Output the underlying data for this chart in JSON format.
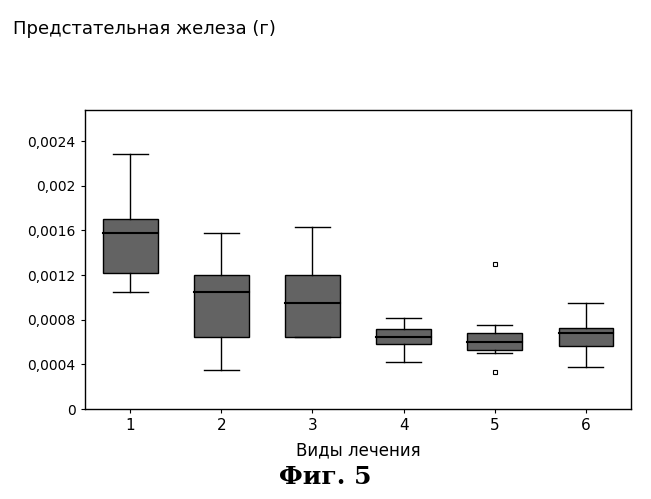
{
  "title": "Предстательная железа (г)",
  "xlabel": "Виды лечения",
  "fig_label": "Фиг. 5",
  "ylim": [
    0,
    0.00268
  ],
  "yticks": [
    0,
    0.0004,
    0.0008,
    0.0012,
    0.0016,
    0.002,
    0.0024
  ],
  "ytick_labels": [
    "0",
    "0,0004",
    "0,0008",
    "0,0012",
    "0,0016",
    "0,002",
    "0,0024"
  ],
  "xticks": [
    1,
    2,
    3,
    4,
    5,
    6
  ],
  "boxes": [
    {
      "group": 1,
      "whisker_low": 0.00105,
      "q1": 0.00122,
      "median": 0.00158,
      "q3": 0.0017,
      "whisker_high": 0.00228,
      "outliers": []
    },
    {
      "group": 2,
      "whisker_low": 0.00035,
      "q1": 0.00065,
      "median": 0.00105,
      "q3": 0.0012,
      "whisker_high": 0.00158,
      "outliers": []
    },
    {
      "group": 3,
      "whisker_low": 0.00065,
      "q1": 0.00065,
      "median": 0.00095,
      "q3": 0.0012,
      "whisker_high": 0.00163,
      "outliers": []
    },
    {
      "group": 4,
      "whisker_low": 0.00042,
      "q1": 0.00058,
      "median": 0.00065,
      "q3": 0.00072,
      "whisker_high": 0.00082,
      "outliers": []
    },
    {
      "group": 5,
      "whisker_low": 0.0005,
      "q1": 0.00053,
      "median": 0.0006,
      "q3": 0.00068,
      "whisker_high": 0.00075,
      "outliers": [
        0.00033,
        0.0013
      ]
    },
    {
      "group": 6,
      "whisker_low": 0.00038,
      "q1": 0.00057,
      "median": 0.00068,
      "q3": 0.00073,
      "whisker_high": 0.00095,
      "outliers": []
    }
  ],
  "box_color": "#636363",
  "box_width": 0.6,
  "bg_color": "#ffffff",
  "figsize": [
    6.51,
    4.99
  ],
  "dpi": 100,
  "title_fontsize": 13,
  "xlabel_fontsize": 12,
  "ylabel_fontsize": 10,
  "figlabel_fontsize": 18
}
